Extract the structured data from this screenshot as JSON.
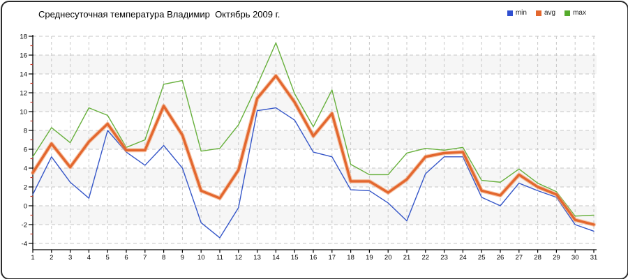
{
  "title": "Среднесуточная температура Владимир  Октябрь 2009 г.",
  "legend": [
    {
      "label": "min",
      "color": "#2f4fd0"
    },
    {
      "label": "avg",
      "color": "#e3672e"
    },
    {
      "label": "max",
      "color": "#55ab2c"
    }
  ],
  "colors": {
    "band_gray": "#f6f6f6",
    "gridline": "#c6c6c6",
    "axis": "#000000",
    "minor_tick_red": "#c5392b",
    "avg_halo": "#f29e6e"
  },
  "chart_data": {
    "type": "line",
    "title": "Среднесуточная температура Владимир  Октябрь 2009 г.",
    "xlabel": "",
    "ylabel": "",
    "x": [
      1,
      2,
      3,
      4,
      5,
      6,
      7,
      8,
      9,
      10,
      11,
      12,
      13,
      14,
      15,
      16,
      17,
      18,
      19,
      20,
      21,
      22,
      23,
      24,
      25,
      26,
      27,
      28,
      29,
      30,
      31
    ],
    "xlim": [
      1,
      31
    ],
    "ylim": [
      -4,
      18
    ],
    "ytick_step": 2,
    "grid": true,
    "legend_position": "top-right",
    "series": [
      {
        "name": "min",
        "color": "#3556c8",
        "width": 1.4,
        "values": [
          1.2,
          5.2,
          2.5,
          0.8,
          8.0,
          5.7,
          4.3,
          6.4,
          4.0,
          -1.8,
          -3.4,
          -0.2,
          10.1,
          10.4,
          9.1,
          5.7,
          5.2,
          1.7,
          1.6,
          0.3,
          -1.6,
          3.4,
          5.2,
          5.2,
          0.9,
          0.0,
          2.4,
          1.6,
          0.9,
          -2.0,
          -2.7
        ]
      },
      {
        "name": "avg",
        "color": "#e3672e",
        "width": 3.4,
        "values": [
          3.5,
          6.6,
          4.1,
          6.8,
          8.7,
          5.9,
          5.9,
          10.6,
          7.5,
          1.6,
          0.8,
          3.8,
          11.4,
          13.8,
          11.0,
          7.4,
          9.8,
          2.6,
          2.6,
          1.4,
          2.8,
          5.2,
          5.6,
          5.7,
          1.6,
          1.1,
          3.3,
          2.0,
          1.2,
          -1.5,
          -2.0
        ]
      },
      {
        "name": "max",
        "color": "#67b03c",
        "width": 1.4,
        "values": [
          5.2,
          8.3,
          6.7,
          10.4,
          9.6,
          6.2,
          7.0,
          12.9,
          13.3,
          5.8,
          6.1,
          8.6,
          12.8,
          17.3,
          11.9,
          8.4,
          12.3,
          4.4,
          3.3,
          3.3,
          5.6,
          6.1,
          5.9,
          6.2,
          2.7,
          2.5,
          3.9,
          2.4,
          1.5,
          -1.1,
          -1.0
        ]
      }
    ]
  }
}
